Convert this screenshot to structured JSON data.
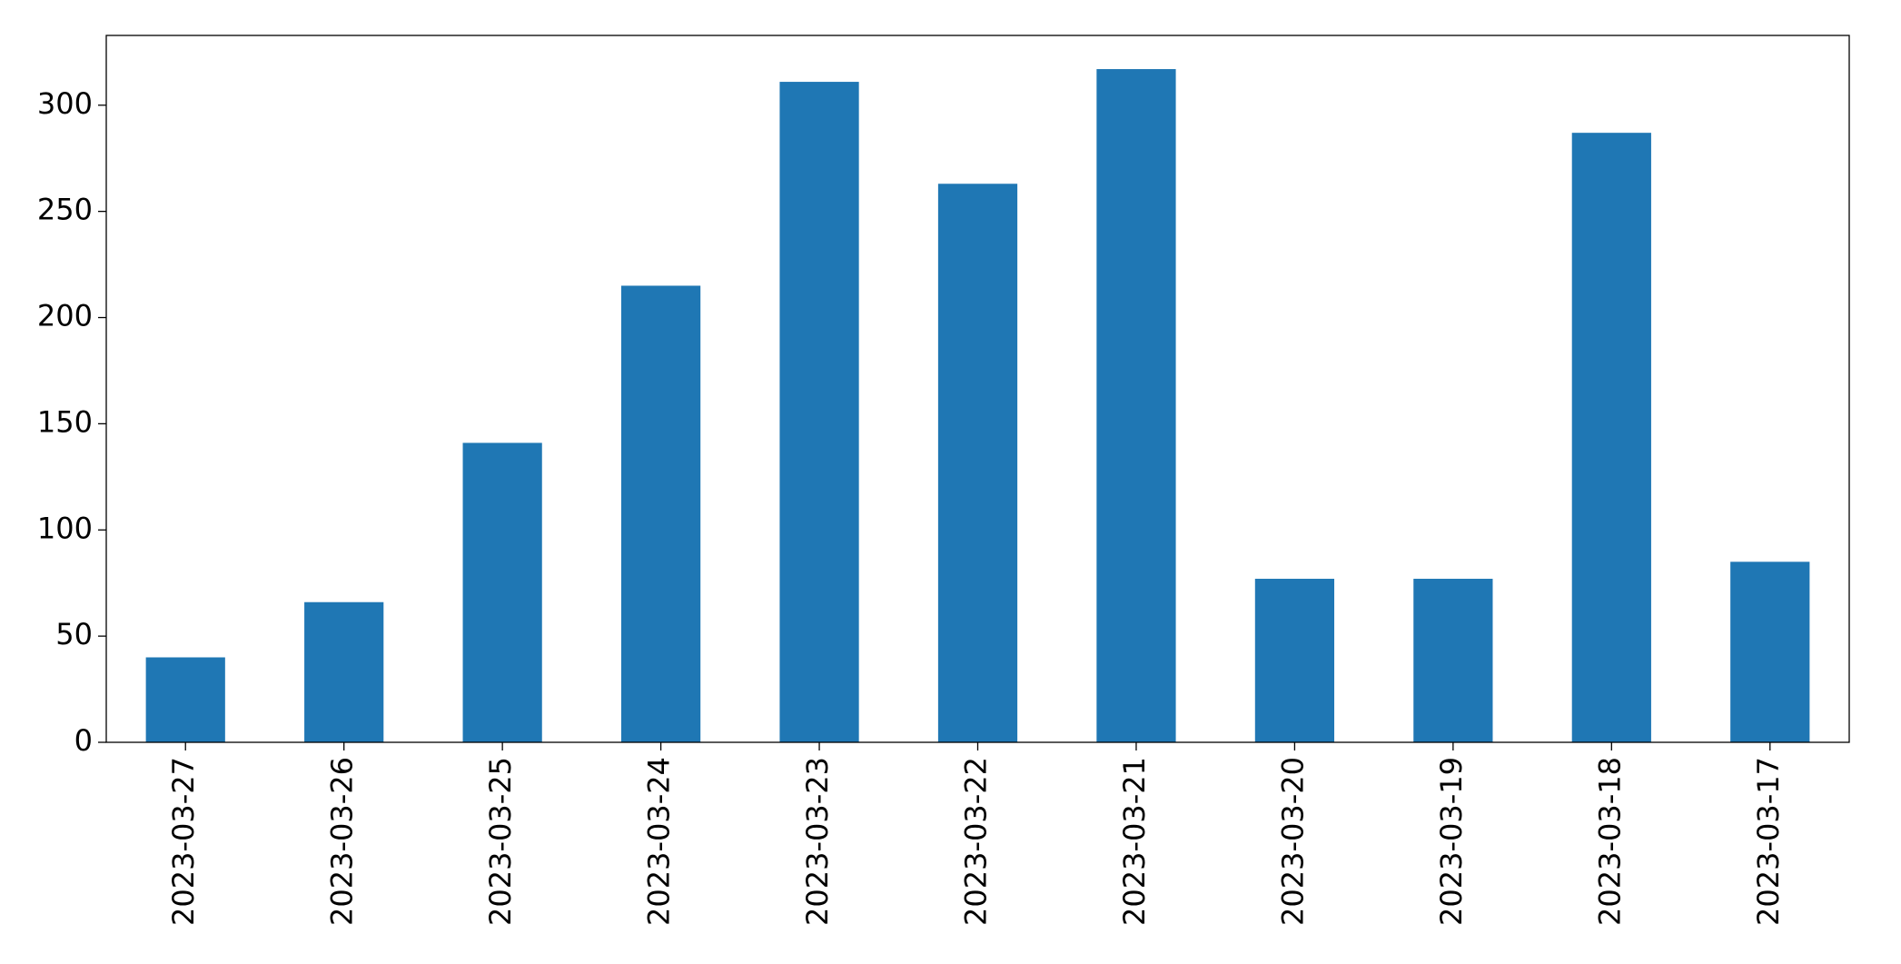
{
  "chart_data": {
    "type": "bar",
    "categories": [
      "2023-03-27",
      "2023-03-26",
      "2023-03-25",
      "2023-03-24",
      "2023-03-23",
      "2023-03-22",
      "2023-03-21",
      "2023-03-20",
      "2023-03-19",
      "2023-03-18",
      "2023-03-17"
    ],
    "values": [
      40,
      66,
      141,
      215,
      311,
      263,
      317,
      77,
      77,
      287,
      85
    ],
    "color": "#1f77b4",
    "ylim": [
      0,
      332.85
    ],
    "yticks": [
      0,
      50,
      100,
      150,
      200,
      250,
      300
    ],
    "grid": false
  }
}
